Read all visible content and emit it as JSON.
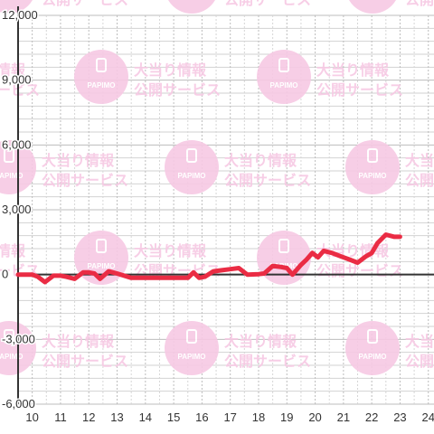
{
  "watermark": {
    "title": "大当り情報",
    "subtitle": "公開サービス",
    "logo_text": "PAPIMO",
    "color": "#f7c9e4"
  },
  "chart_data": {
    "type": "line",
    "title": "",
    "xlabel": "",
    "ylabel": "",
    "xlim": [
      9.5,
      24.2
    ],
    "ylim": [
      -6000,
      12000
    ],
    "x_ticks": [
      10,
      11,
      12,
      13,
      14,
      15,
      16,
      17,
      18,
      19,
      20,
      21,
      22,
      23,
      24
    ],
    "x_tick_labels": [
      "10",
      "11",
      "12",
      "13",
      "14",
      "15",
      "16",
      "17",
      "18",
      "19",
      "20",
      "21",
      "22",
      "23",
      "24"
    ],
    "y_ticks": [
      12000,
      9000,
      6000,
      3000,
      0,
      -3000,
      -6000
    ],
    "y_tick_labels": [
      "12,000",
      "9,000",
      "6,000",
      "3,000",
      "0",
      "-3,000",
      "-6,000"
    ],
    "grid": true,
    "line_color": "#ea2c44",
    "series": [
      {
        "x": [
          9.5,
          10.0,
          10.2,
          10.45,
          10.75,
          11.0,
          11.2,
          11.5,
          11.8,
          12.0,
          12.2,
          12.4,
          12.7,
          13.0,
          13.5,
          14.0,
          14.5,
          15.0,
          15.5,
          15.7,
          15.9,
          16.1,
          16.4,
          16.7,
          17.0,
          17.3,
          17.6,
          18.0,
          18.2,
          18.5,
          18.8,
          19.0,
          19.2,
          19.5,
          19.7,
          19.9,
          20.1,
          20.3,
          20.6,
          20.9,
          21.2,
          21.5,
          21.8,
          22.0,
          22.2,
          22.5,
          22.8,
          23.0
        ],
        "y": [
          0,
          0,
          -100,
          -350,
          -50,
          -50,
          -100,
          -200,
          100,
          100,
          50,
          -200,
          150,
          50,
          -150,
          -150,
          -150,
          -150,
          -150,
          100,
          -150,
          -100,
          150,
          200,
          250,
          300,
          0,
          20,
          50,
          400,
          350,
          300,
          0,
          450,
          700,
          1000,
          800,
          1100,
          1000,
          850,
          700,
          550,
          850,
          1000,
          1450,
          1850,
          1750,
          1750
        ]
      }
    ]
  }
}
